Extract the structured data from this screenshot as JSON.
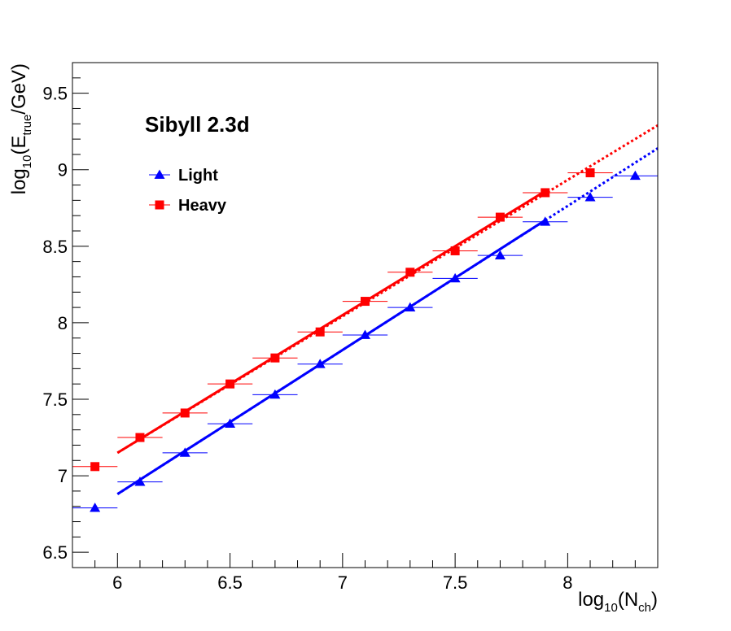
{
  "chart_data": {
    "type": "scatter",
    "title": "Sibyll 2.3d",
    "xlabel": {
      "base": "log",
      "sub1": "10",
      "mid": "(N",
      "sub2": "ch",
      "end": ")"
    },
    "ylabel": {
      "base": "log",
      "sub1": "10",
      "mid": "(E",
      "sub2": "true",
      "end": "/GeV)"
    },
    "xlim": [
      5.8,
      8.4
    ],
    "ylim": [
      6.4,
      9.7
    ],
    "x_ticks": [
      "6",
      "6.5",
      "7",
      "7.5",
      "8"
    ],
    "y_ticks": [
      "6.5",
      "7",
      "7.5",
      "8",
      "8.5",
      "9",
      "9.5"
    ],
    "x_error": 0.1,
    "grid": false,
    "legend_placement": "top-left",
    "series": [
      {
        "name": "Light",
        "color": "#0000ff",
        "marker": "triangle",
        "x": [
          5.9,
          6.1,
          6.3,
          6.5,
          6.7,
          6.9,
          7.1,
          7.3,
          7.5,
          7.7,
          7.9,
          8.1,
          8.3
        ],
        "y": [
          6.79,
          6.96,
          7.15,
          7.34,
          7.53,
          7.73,
          7.92,
          8.1,
          8.29,
          8.44,
          8.66,
          8.82,
          8.96
        ],
        "fit_solid": [
          [
            6.0,
            6.88
          ],
          [
            7.9,
            8.67
          ]
        ],
        "fit_dotted": [
          [
            6.0,
            6.88
          ],
          [
            8.4,
            9.14
          ]
        ]
      },
      {
        "name": "Heavy",
        "color": "#ff0000",
        "marker": "square",
        "x": [
          5.9,
          6.1,
          6.3,
          6.5,
          6.7,
          6.9,
          7.1,
          7.3,
          7.5,
          7.7,
          7.9,
          8.1
        ],
        "y": [
          7.06,
          7.25,
          7.41,
          7.6,
          7.77,
          7.94,
          8.14,
          8.33,
          8.47,
          8.69,
          8.85,
          8.98
        ],
        "fit_solid": [
          [
            6.0,
            7.15
          ],
          [
            7.9,
            8.86
          ]
        ],
        "fit_dotted": [
          [
            6.0,
            7.15
          ],
          [
            8.4,
            9.29
          ]
        ]
      }
    ]
  }
}
